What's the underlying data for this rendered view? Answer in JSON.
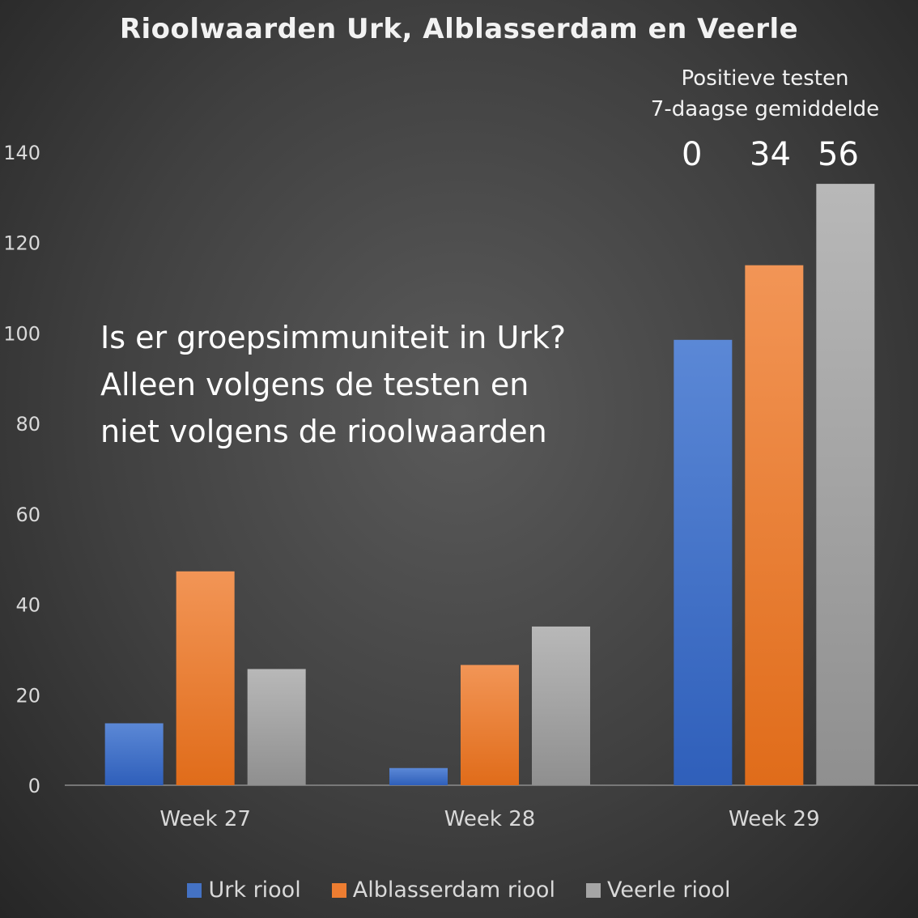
{
  "chart_data": {
    "type": "bar",
    "title": "Rioolwaarden Urk, Alblasserdam en Veerle",
    "categories": [
      "Week 27",
      "Week 28",
      "Week 29"
    ],
    "series": [
      {
        "name": "Urk riool",
        "values": [
          13.7,
          3.8,
          98.5
        ],
        "color": "#4472c4"
      },
      {
        "name": "Alblasserdam riool",
        "values": [
          47.3,
          26.6,
          115.0
        ],
        "color": "#ed7d31"
      },
      {
        "name": "Veerle riool",
        "values": [
          25.7,
          35.1,
          133.0
        ],
        "color": "#a5a5a5"
      }
    ],
    "ylim": [
      0,
      140
    ],
    "yticks": [
      0,
      20,
      40,
      60,
      80,
      100,
      120,
      140
    ],
    "legend_position": "bottom",
    "grid": false
  },
  "annotation": {
    "line1": "Positieve testen",
    "line2": "7-daagse gemiddelde",
    "values": [
      "0",
      "34",
      "56"
    ]
  },
  "callout": {
    "line1": "Is er groepsimmuniteit in Urk?",
    "line2": "Alleen volgens de testen en",
    "line3": "niet volgens de rioolwaarden"
  }
}
